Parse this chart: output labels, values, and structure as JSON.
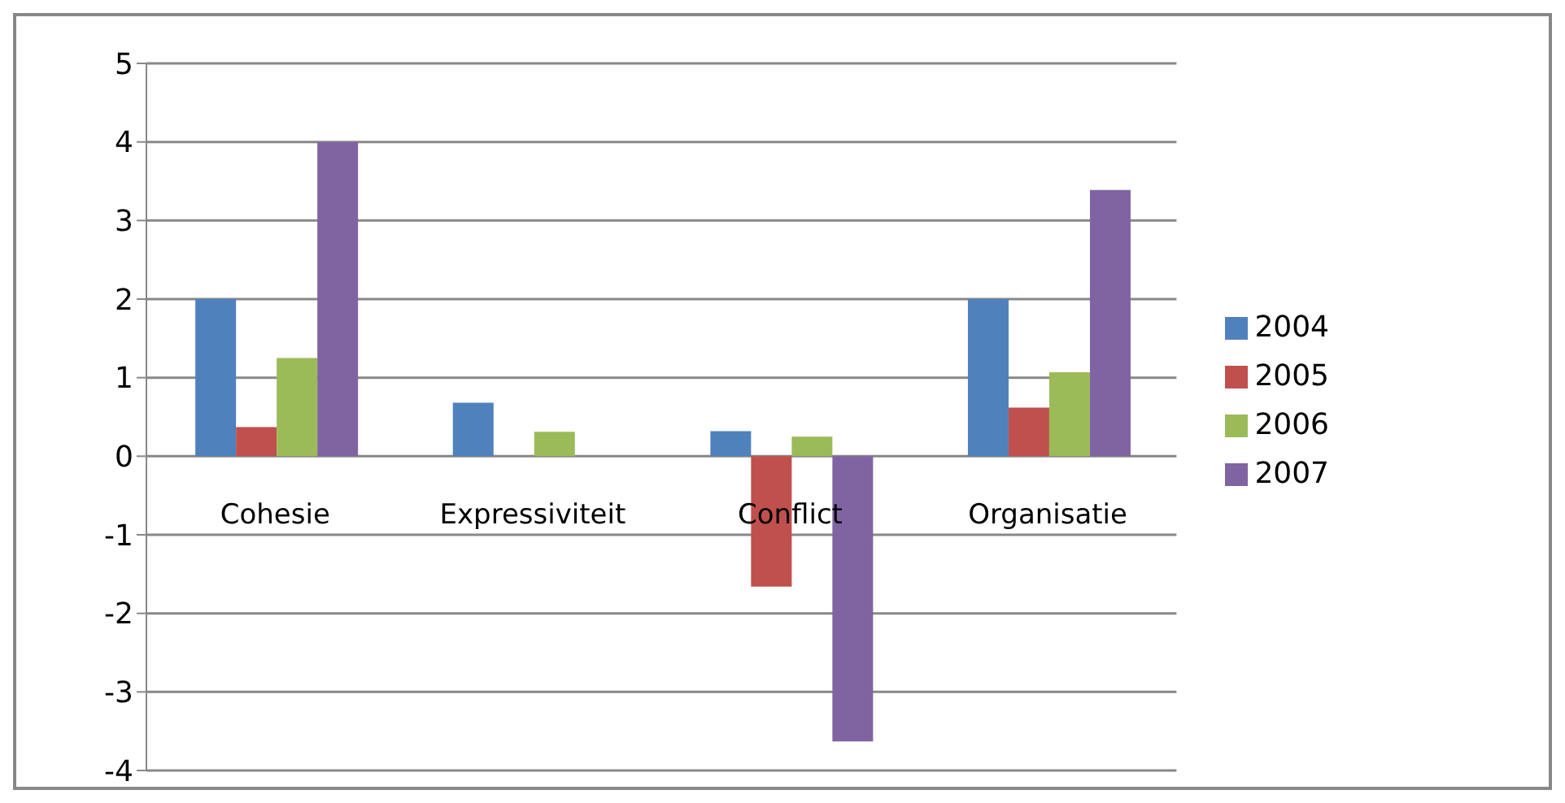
{
  "chart_data": {
    "type": "bar",
    "categories": [
      "Cohesie",
      "Expressiviteit",
      "Conflict",
      "Organisatie"
    ],
    "series": [
      {
        "name": "2004",
        "color": "#4f81bd",
        "values": [
          2.0,
          0.68,
          0.32,
          2.0
        ]
      },
      {
        "name": "2005",
        "color": "#c0504d",
        "values": [
          0.37,
          0,
          -1.66,
          0.62
        ]
      },
      {
        "name": "2006",
        "color": "#9bbb59",
        "values": [
          1.25,
          0.31,
          0.25,
          1.07
        ]
      },
      {
        "name": "2007",
        "color": "#8064a2",
        "values": [
          4.0,
          0,
          -3.63,
          3.39
        ]
      }
    ],
    "ylim": [
      -4,
      5
    ],
    "yticks": [
      -4,
      -3,
      -2,
      -1,
      0,
      1,
      2,
      3,
      4,
      5
    ],
    "grid": "y",
    "legend": "right"
  }
}
